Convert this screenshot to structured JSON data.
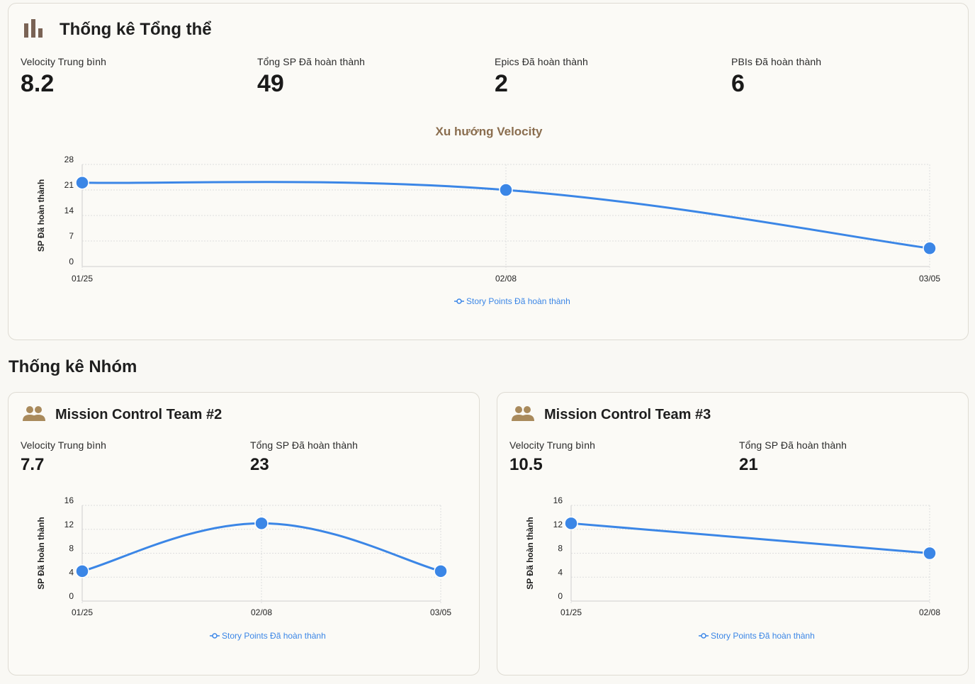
{
  "overall": {
    "title": "Thống kê Tổng thể",
    "icon": "bar-chart-icon",
    "stats": [
      {
        "label": "Velocity Trung bình",
        "value": "8.2"
      },
      {
        "label": "Tổng SP Đã hoàn thành",
        "value": "49"
      },
      {
        "label": "Epics Đã hoàn thành",
        "value": "2"
      },
      {
        "label": "PBIs Đã hoàn thành",
        "value": "6"
      }
    ]
  },
  "team_section": {
    "title": "Thống kê Nhóm"
  },
  "teams": [
    {
      "title": "Mission Control Team #2",
      "icon": "team-icon",
      "stats": [
        {
          "label": "Velocity Trung bình",
          "value": "7.7"
        },
        {
          "label": "Tổng SP Đã hoàn thành",
          "value": "23"
        }
      ]
    },
    {
      "title": "Mission Control Team #3",
      "icon": "team-icon",
      "stats": [
        {
          "label": "Velocity Trung bình",
          "value": "10.5"
        },
        {
          "label": "Tổng SP Đã hoàn thành",
          "value": "21"
        }
      ]
    }
  ],
  "colors": {
    "line": "#3b86e6",
    "icon_overall": "#7a6355",
    "icon_team": "#a98a5c",
    "chart_title": "#8a6d4e"
  },
  "chart_data": [
    {
      "type": "line",
      "title": "Xu hướng Velocity",
      "categories": [
        "01/25",
        "02/08",
        "03/05"
      ],
      "series": [
        {
          "name": "Story Points Đã hoàn thành",
          "values": [
            23,
            21,
            5
          ]
        }
      ],
      "xlabel": "",
      "ylabel": "SP Đã hoàn thành",
      "ylim": [
        0,
        28
      ],
      "yticks": [
        0,
        7,
        14,
        21,
        28
      ],
      "grid": true,
      "legend": "bottom"
    },
    {
      "type": "line",
      "title": "",
      "categories": [
        "01/25",
        "02/08",
        "03/05"
      ],
      "series": [
        {
          "name": "Story Points Đã hoàn thành",
          "values": [
            5,
            13,
            5
          ]
        }
      ],
      "xlabel": "",
      "ylabel": "SP Đã hoàn thành",
      "ylim": [
        0,
        16
      ],
      "yticks": [
        0,
        4,
        8,
        12,
        16
      ],
      "grid": true,
      "legend": "bottom"
    },
    {
      "type": "line",
      "title": "",
      "categories": [
        "01/25",
        "02/08"
      ],
      "series": [
        {
          "name": "Story Points Đã hoàn thành",
          "values": [
            13,
            8
          ]
        }
      ],
      "xlabel": "",
      "ylabel": "SP Đã hoàn thành",
      "ylim": [
        0,
        16
      ],
      "yticks": [
        0,
        4,
        8,
        12,
        16
      ],
      "grid": true,
      "legend": "bottom"
    }
  ]
}
